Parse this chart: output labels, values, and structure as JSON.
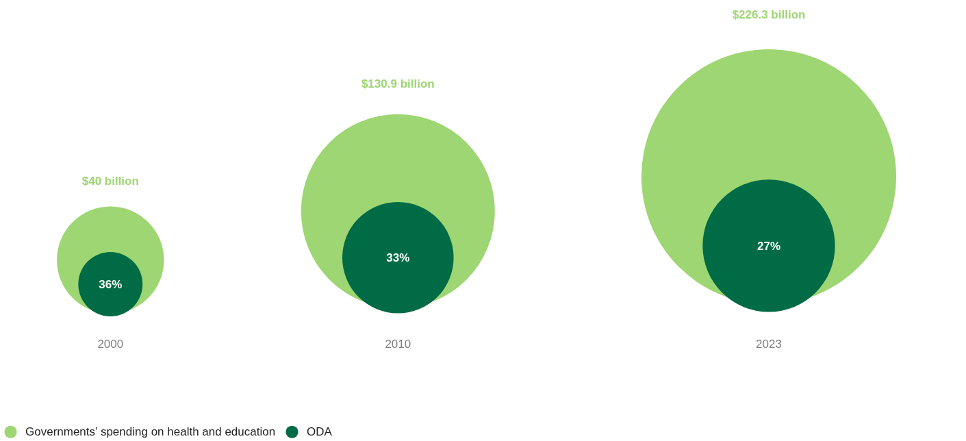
{
  "chart_data": {
    "type": "other",
    "categories": [
      "2000",
      "2010",
      "2023"
    ],
    "legend": "bottom left",
    "series": [
      {
        "name": "Governments’ spending on health and education",
        "color": "#9dd672",
        "values": [
          40,
          130.9,
          226.3
        ],
        "value_labels": [
          "$40 billion",
          "$130.9 billion",
          "$226.3 billion"
        ]
      },
      {
        "name": "ODA",
        "color": "#006b45",
        "values": [
          36,
          33,
          27
        ],
        "value_labels": [
          "36%",
          "33%",
          "27%"
        ]
      }
    ]
  }
}
